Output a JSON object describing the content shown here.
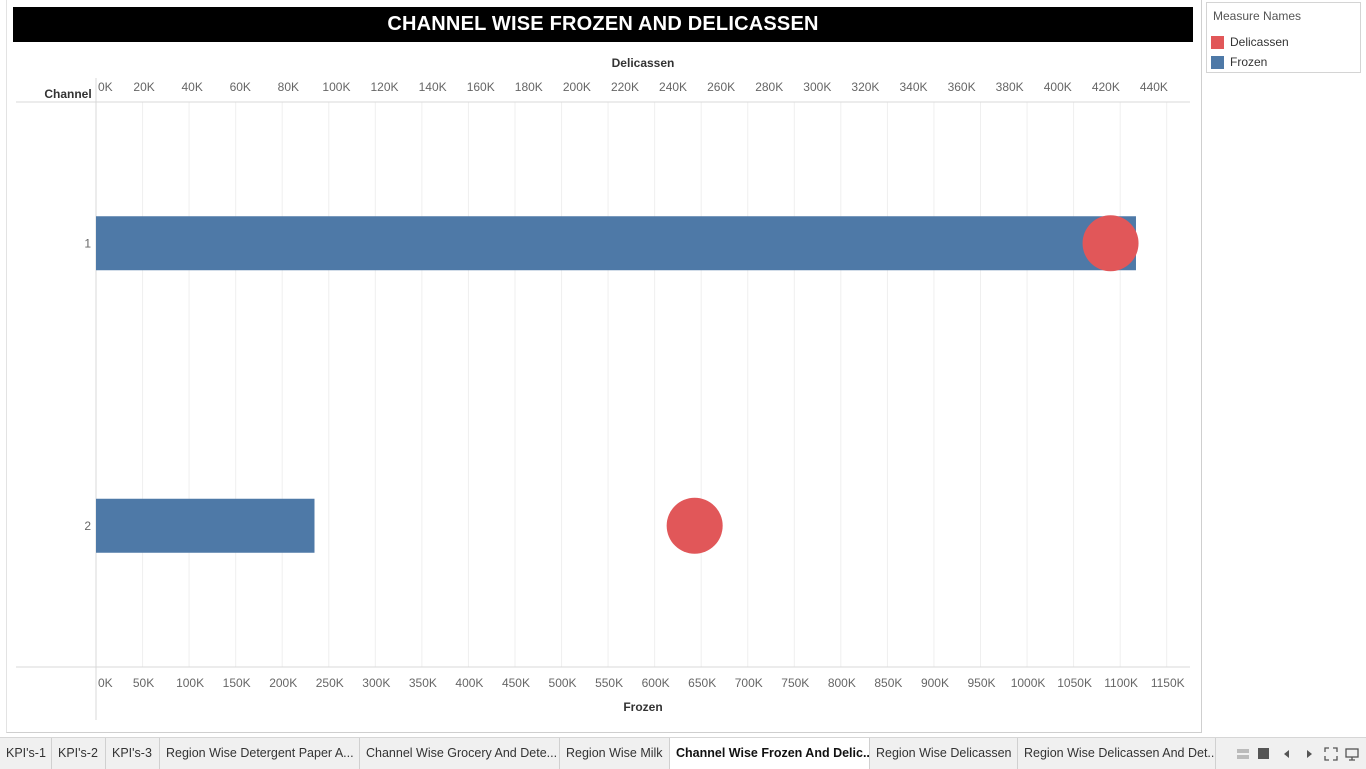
{
  "title": "CHANNEL WISE FROZEN AND DELICASSEN",
  "legend": {
    "title": "Measure Names",
    "items": [
      {
        "label": "Delicassen",
        "color": "#E15759"
      },
      {
        "label": "Frozen",
        "color": "#4E79A7"
      }
    ]
  },
  "chart_data": {
    "type": "bar",
    "row_header": "Channel",
    "categories": [
      "1",
      "2"
    ],
    "series": [
      {
        "name": "Frozen",
        "mark": "bar",
        "axis": "bottom",
        "values": [
          1116979,
          234671
        ],
        "color": "#4E79A7"
      },
      {
        "name": "Delicassen",
        "mark": "circle",
        "axis": "top",
        "values": [
          421955,
          248988
        ],
        "color": "#E15759"
      }
    ],
    "top_axis": {
      "label": "Delicassen",
      "range": [
        0,
        455000
      ],
      "ticks": [
        "0K",
        "20K",
        "40K",
        "60K",
        "80K",
        "100K",
        "120K",
        "140K",
        "160K",
        "180K",
        "200K",
        "220K",
        "240K",
        "260K",
        "280K",
        "300K",
        "320K",
        "340K",
        "360K",
        "380K",
        "400K",
        "420K",
        "440K"
      ]
    },
    "bottom_axis": {
      "label": "Frozen",
      "range": [
        0,
        1175000
      ],
      "ticks": [
        "0K",
        "50K",
        "100K",
        "150K",
        "200K",
        "250K",
        "300K",
        "350K",
        "400K",
        "450K",
        "500K",
        "550K",
        "600K",
        "650K",
        "700K",
        "750K",
        "800K",
        "850K",
        "900K",
        "950K",
        "1000K",
        "1050K",
        "1100K",
        "1150K"
      ]
    },
    "grid": true,
    "legend_position": "top-right"
  },
  "tabs": [
    {
      "label": "KPI's-1"
    },
    {
      "label": "KPI's-2"
    },
    {
      "label": "KPI's-3"
    },
    {
      "label": "Region Wise Detergent Paper A..."
    },
    {
      "label": "Channel Wise Grocery And Dete..."
    },
    {
      "label": "Region Wise Milk"
    },
    {
      "label": "Channel Wise Frozen And Delic...",
      "active": true
    },
    {
      "label": "Region Wise Delicassen"
    },
    {
      "label": "Region Wise Delicassen And Det..."
    }
  ],
  "nav_icons": [
    "grid-view-icon",
    "filmstrip-icon",
    "prev-icon",
    "next-icon",
    "fullscreen-icon",
    "present-icon"
  ]
}
